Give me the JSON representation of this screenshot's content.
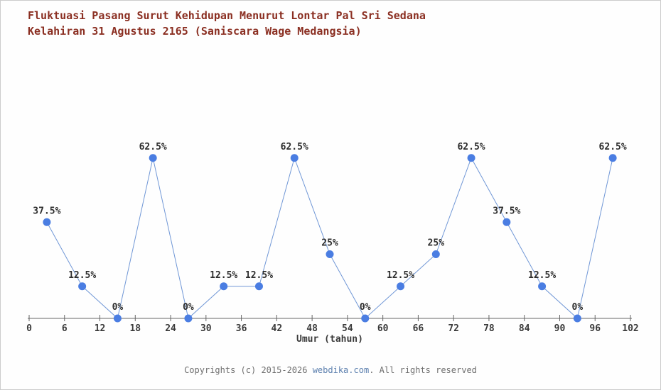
{
  "title_line1": "Fluktuasi Pasang Surut Kehidupan Menurut Lontar Pal Sri Sedana",
  "title_line2": "Kelahiran 31 Agustus 2165 (Saniscara Wage Medangsia)",
  "chart_data": {
    "type": "line",
    "title": "Fluktuasi Pasang Surut Kehidupan Menurut Lontar Pal Sri Sedana Kelahiran 31 Agustus 2165 (Saniscara Wage Medangsia)",
    "xlabel": "Umur (tahun)",
    "ylabel": "",
    "x": [
      3,
      9,
      15,
      21,
      27,
      33,
      39,
      45,
      51,
      57,
      63,
      69,
      75,
      81,
      87,
      93,
      99
    ],
    "values": [
      37.5,
      12.5,
      0,
      62.5,
      0,
      12.5,
      12.5,
      62.5,
      25,
      0,
      12.5,
      25,
      62.5,
      37.5,
      12.5,
      0,
      62.5
    ],
    "point_labels": [
      "37.5%",
      "12.5%",
      "0%",
      "62.5%",
      "0%",
      "12.5%",
      "12.5%",
      "62.5%",
      "25%",
      "0%",
      "12.5%",
      "25%",
      "62.5%",
      "37.5%",
      "12.5%",
      "0%",
      "62.5%"
    ],
    "x_ticks": [
      0,
      6,
      12,
      18,
      24,
      30,
      36,
      42,
      48,
      54,
      60,
      66,
      72,
      78,
      84,
      90,
      96,
      102
    ],
    "xlim": [
      0,
      102
    ],
    "ylim": [
      0,
      100
    ],
    "grid": false,
    "legend": "none",
    "line_color": "#7097d6",
    "marker_color": "#4a7de2",
    "axis_color": "#666666",
    "tick_label_color": "#3a3a3a",
    "point_label_color": "#2d2d2d",
    "title_color": "#8b2f22"
  },
  "footer": {
    "prefix": "Copyrights (c) 2015-2026 ",
    "site": "webdika.com",
    "suffix": ". All rights reserved"
  }
}
